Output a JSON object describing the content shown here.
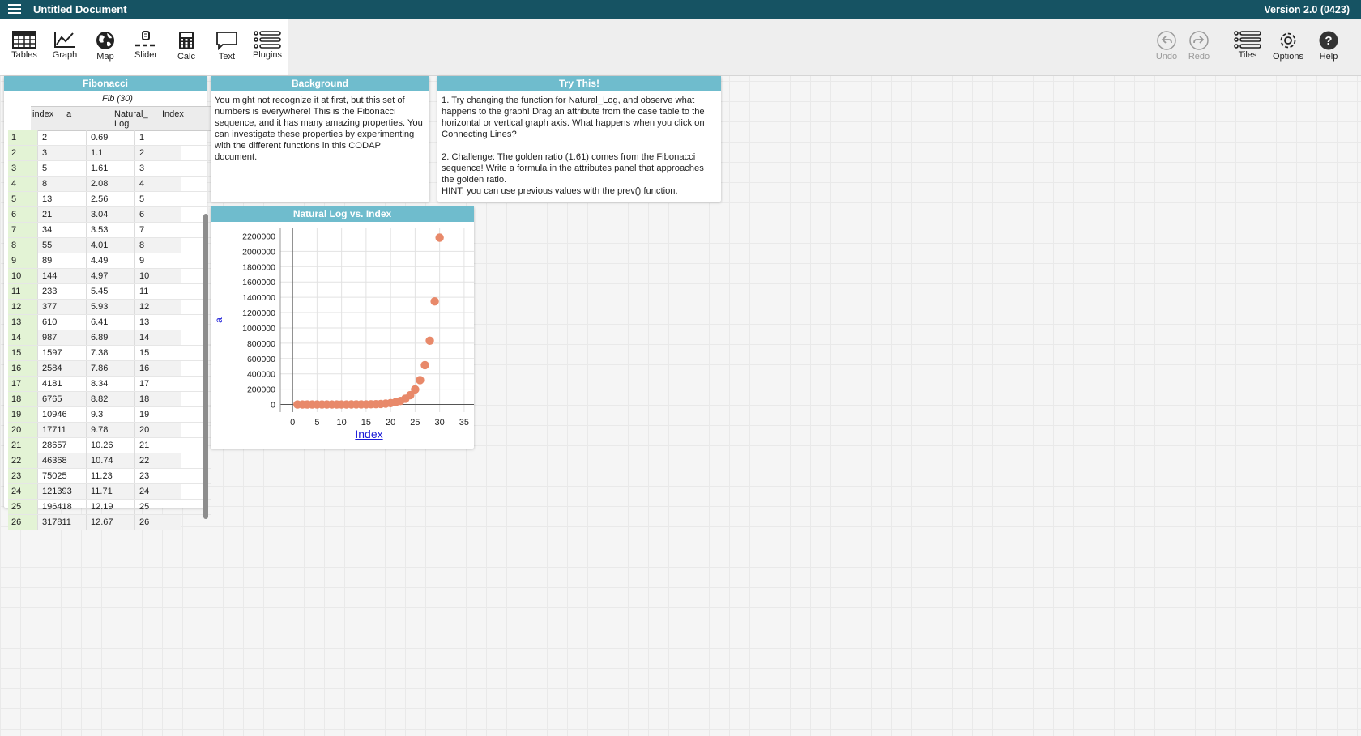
{
  "app": {
    "doc_title": "Untitled Document",
    "version": "Version 2.0 (0423)"
  },
  "toolbar": {
    "tables": "Tables",
    "graph": "Graph",
    "map": "Map",
    "slider": "Slider",
    "calc": "Calc",
    "text": "Text",
    "plugins": "Plugins",
    "undo": "Undo",
    "redo": "Redo",
    "tiles": "Tiles",
    "options": "Options",
    "help": "Help"
  },
  "table": {
    "title": "Fibonacci",
    "collection": "Fib (30)",
    "headers": [
      "index",
      "a",
      "Natural_ Log",
      "Index"
    ],
    "rows": [
      [
        "1",
        "2",
        "0.69",
        "1"
      ],
      [
        "2",
        "3",
        "1.1",
        "2"
      ],
      [
        "3",
        "5",
        "1.61",
        "3"
      ],
      [
        "4",
        "8",
        "2.08",
        "4"
      ],
      [
        "5",
        "13",
        "2.56",
        "5"
      ],
      [
        "6",
        "21",
        "3.04",
        "6"
      ],
      [
        "7",
        "34",
        "3.53",
        "7"
      ],
      [
        "8",
        "55",
        "4.01",
        "8"
      ],
      [
        "9",
        "89",
        "4.49",
        "9"
      ],
      [
        "10",
        "144",
        "4.97",
        "10"
      ],
      [
        "11",
        "233",
        "5.45",
        "11"
      ],
      [
        "12",
        "377",
        "5.93",
        "12"
      ],
      [
        "13",
        "610",
        "6.41",
        "13"
      ],
      [
        "14",
        "987",
        "6.89",
        "14"
      ],
      [
        "15",
        "1597",
        "7.38",
        "15"
      ],
      [
        "16",
        "2584",
        "7.86",
        "16"
      ],
      [
        "17",
        "4181",
        "8.34",
        "17"
      ],
      [
        "18",
        "6765",
        "8.82",
        "18"
      ],
      [
        "19",
        "10946",
        "9.3",
        "19"
      ],
      [
        "20",
        "17711",
        "9.78",
        "20"
      ],
      [
        "21",
        "28657",
        "10.26",
        "21"
      ],
      [
        "22",
        "46368",
        "10.74",
        "22"
      ],
      [
        "23",
        "75025",
        "11.23",
        "23"
      ],
      [
        "24",
        "121393",
        "11.71",
        "24"
      ],
      [
        "25",
        "196418",
        "12.19",
        "25"
      ],
      [
        "26",
        "317811",
        "12.67",
        "26"
      ]
    ]
  },
  "background": {
    "title": "Background",
    "body": "You might not recognize it at first, but this set of numbers is everywhere! This is the Fibonacci sequence, and it has many amazing properties. You can investigate these properties by experimenting with the different functions in this CODAP document."
  },
  "trythis": {
    "title": "Try This!",
    "body": "1. Try changing the function for Natural_Log, and observe what happens to the graph! Drag an attribute from the case table to the horizontal or vertical graph axis. What happens when you click on Connecting Lines?\n\n2. Challenge: The golden ratio (1.61) comes from the Fibonacci sequence! Write a formula in the attributes panel that approaches the golden ratio.\nHINT: you can use previous values with the prev() function."
  },
  "graph": {
    "title": "Natural Log vs. Index"
  },
  "colors": {
    "titlebar": "#165363",
    "tile_header": "#6fbccd",
    "point": "#e8896a"
  },
  "chart_data": {
    "type": "scatter",
    "title": "Natural Log vs. Index",
    "xlabel": "Index",
    "ylabel": "a",
    "xlim": [
      -2.5,
      37
    ],
    "ylim": [
      -100000,
      2300000
    ],
    "x_ticks": [
      "0",
      "5",
      "10",
      "15",
      "20",
      "25",
      "30",
      "35"
    ],
    "y_ticks": [
      "0",
      "200000",
      "400000",
      "600000",
      "800000",
      "1000000",
      "1200000",
      "1400000",
      "1600000",
      "1800000",
      "2000000",
      "2200000"
    ],
    "x": [
      1,
      2,
      3,
      4,
      5,
      6,
      7,
      8,
      9,
      10,
      11,
      12,
      13,
      14,
      15,
      16,
      17,
      18,
      19,
      20,
      21,
      22,
      23,
      24,
      25,
      26,
      27,
      28,
      29,
      30
    ],
    "y": [
      2,
      3,
      5,
      8,
      13,
      21,
      34,
      55,
      89,
      144,
      233,
      377,
      610,
      987,
      1597,
      2584,
      4181,
      6765,
      10946,
      17711,
      28657,
      46368,
      75025,
      121393,
      196418,
      317811,
      514229,
      832040,
      1346269,
      2178309
    ],
    "grid": true
  }
}
